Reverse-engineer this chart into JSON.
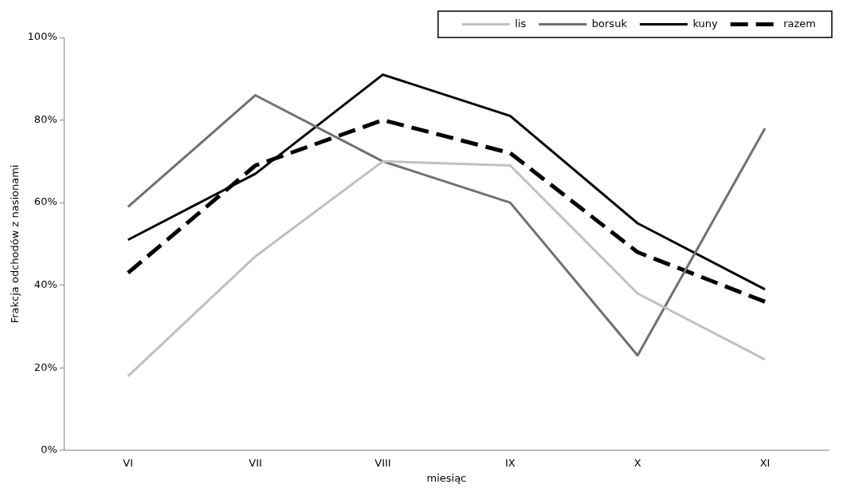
{
  "chart_data": {
    "type": "line",
    "xlabel": "miesiąc",
    "ylabel": "Frakcja odchodów z nasionami",
    "categories": [
      "VI",
      "VII",
      "VIII",
      "IX",
      "X",
      "XI"
    ],
    "series": [
      {
        "name": "lis",
        "color": "#c0c0c0",
        "values": [
          18,
          47,
          70,
          69,
          38,
          22
        ]
      },
      {
        "name": "borsuk",
        "color": "#707070",
        "values": [
          59,
          86,
          70,
          60,
          23,
          78
        ]
      },
      {
        "name": "kuny",
        "color": "#000000",
        "values": [
          51,
          67,
          91,
          81,
          55,
          39
        ]
      },
      {
        "name": "razem",
        "color": "#000000",
        "line_style": "dashed",
        "values": [
          43,
          69,
          80,
          72,
          48,
          36
        ]
      }
    ],
    "ylim": [
      0,
      100
    ],
    "yticks": [
      {
        "value": 0,
        "label": "0%"
      },
      {
        "value": 20,
        "label": "20%"
      },
      {
        "value": 40,
        "label": "40%"
      },
      {
        "value": 60,
        "label": "60%"
      },
      {
        "value": 80,
        "label": "80%"
      },
      {
        "value": 100,
        "label": "100%"
      }
    ],
    "grid": false,
    "legend": "top right",
    "marker": "none"
  }
}
